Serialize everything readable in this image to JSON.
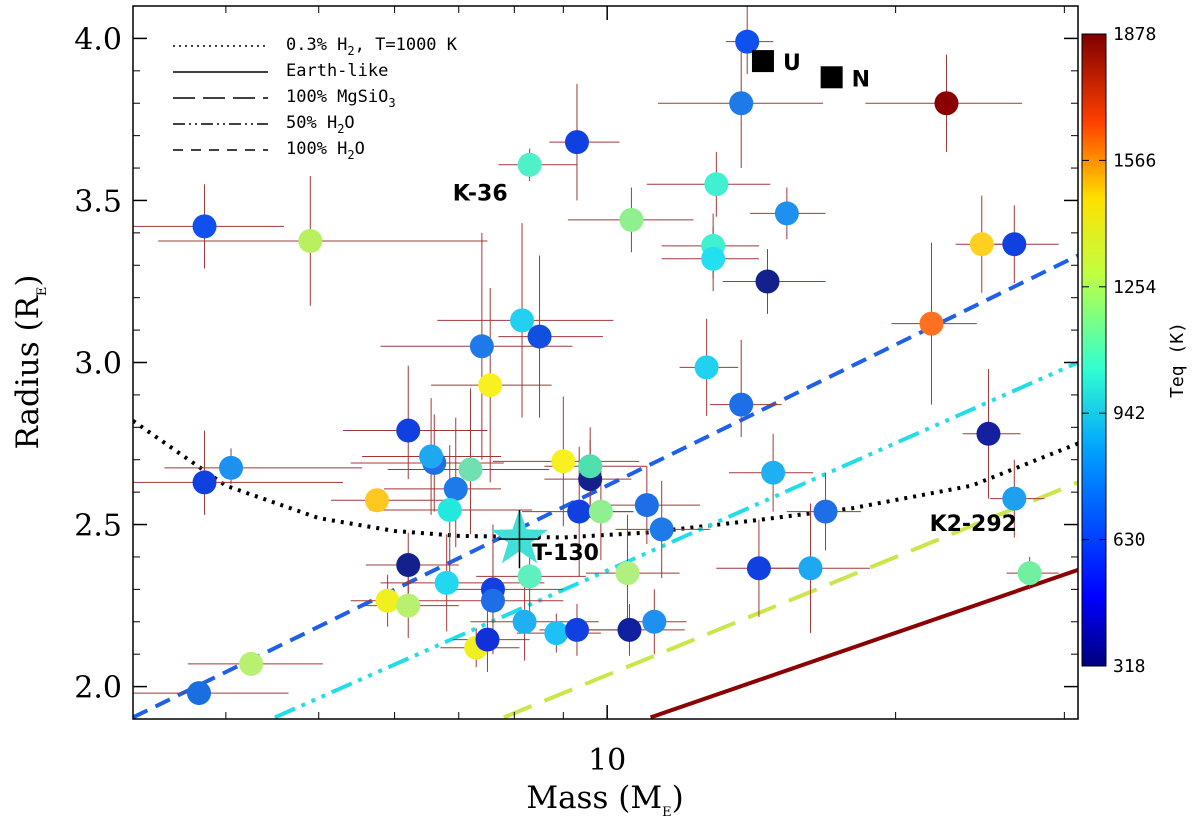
{
  "chart_data": {
    "type": "scatter",
    "xlabel": "Mass (M",
    "xlabel_sub": "E",
    "ylabel": "Radius (R",
    "ylabel_sub": "E",
    "x_scale": "log",
    "xlim": [
      3.2,
      31
    ],
    "ylim": [
      1.9,
      4.1
    ],
    "x_ticks": [
      {
        "value": 10,
        "label": "10"
      }
    ],
    "y_ticks": [
      {
        "value": 2.0,
        "label": "2.0"
      },
      {
        "value": 2.5,
        "label": "2.5"
      },
      {
        "value": 3.0,
        "label": "3.0"
      },
      {
        "value": 3.5,
        "label": "3.5"
      },
      {
        "value": 4.0,
        "label": "4.0"
      }
    ],
    "colorbar": {
      "label": "Teq (K)",
      "min": 318,
      "max": 1878,
      "ticks": [
        318,
        630,
        942,
        1254,
        1566,
        1878
      ]
    },
    "legend": [
      {
        "label": "0.3% H",
        "sub": "2",
        "rest": ", T=1000 K",
        "style": "dotted"
      },
      {
        "label": "Earth-like",
        "sub": "",
        "rest": "",
        "style": "solid"
      },
      {
        "label": "100% MgSiO",
        "sub": "3",
        "rest": "",
        "style": "longdash"
      },
      {
        "label": "50% H",
        "sub": "2",
        "rest": "O",
        "style": "dashdotdot"
      },
      {
        "label": "100% H",
        "sub": "2",
        "rest": "O",
        "style": "dash"
      }
    ],
    "models": [
      {
        "name": "0.3% H2, T=1000 K",
        "color": "#000000",
        "dash": "3,6",
        "width": 4,
        "points": [
          [
            3.2,
            2.82
          ],
          [
            4.0,
            2.62
          ],
          [
            5.0,
            2.52
          ],
          [
            6.0,
            2.48
          ],
          [
            7.0,
            2.465
          ],
          [
            9.0,
            2.46
          ],
          [
            11.0,
            2.475
          ],
          [
            14.0,
            2.51
          ],
          [
            18.0,
            2.55
          ],
          [
            24.0,
            2.62
          ],
          [
            31.0,
            2.75
          ]
        ]
      },
      {
        "name": "Earth-like",
        "color": "#8b0000",
        "dash": "",
        "width": 4,
        "points": [
          [
            11.1,
            1.905
          ],
          [
            31.0,
            2.36
          ]
        ]
      },
      {
        "name": "100% MgSiO3",
        "color": "#c8e84a",
        "dash": "30,14",
        "width": 4,
        "points": [
          [
            7.8,
            1.905
          ],
          [
            31.0,
            2.63
          ]
        ]
      },
      {
        "name": "50% H2O",
        "color": "#22dde6",
        "dash": "22,7,4,7,4,7,4,7",
        "width": 4,
        "points": [
          [
            4.5,
            1.905
          ],
          [
            31.0,
            3.0
          ]
        ]
      },
      {
        "name": "100% H2O",
        "color": "#1e60e8",
        "dash": "16,9",
        "width": 4,
        "points": [
          [
            3.2,
            1.905
          ],
          [
            31.0,
            3.33
          ]
        ]
      }
    ],
    "points": [
      {
        "m": 3.75,
        "r": 1.98,
        "c": "#1a6fe0",
        "xe": [
          0.9,
          0.9
        ],
        "ye": [
          0.0,
          0.0
        ]
      },
      {
        "m": 4.25,
        "r": 2.07,
        "c": "#b8f070",
        "xe": [
          0.6,
          0.8
        ],
        "ye": [
          0.0,
          0.0
        ]
      },
      {
        "m": 3.8,
        "r": 2.63,
        "c": "#1040e0",
        "xe": [
          0.7,
          1.5
        ],
        "ye": [
          0.1,
          0.16
        ]
      },
      {
        "m": 4.05,
        "r": 2.675,
        "c": "#1e90f0",
        "xe": [
          0.6,
          1.5
        ],
        "ye": [
          0.05,
          0.06
        ]
      },
      {
        "m": 3.8,
        "r": 3.42,
        "c": "#1050ee",
        "xe": [
          1.6,
          0.8
        ],
        "ye": [
          0.13,
          0.13
        ]
      },
      {
        "m": 4.9,
        "r": 3.375,
        "c": "#b8f060",
        "xe": [
          1.5,
          2.6
        ],
        "ye": [
          0.2,
          0.2
        ]
      },
      {
        "m": 5.75,
        "r": 2.575,
        "c": "#ffc820",
        "xe": [
          0.6,
          1.1
        ],
        "ye": [
          0.0,
          0.0
        ]
      },
      {
        "m": 6.2,
        "r": 2.79,
        "c": "#1040e0",
        "xe": [
          0.9,
          1.3
        ],
        "ye": [
          0.15,
          0.2
        ]
      },
      {
        "m": 6.2,
        "r": 2.375,
        "c": "#14208c",
        "xe": [
          0.6,
          0.8
        ],
        "ye": [
          0.1,
          0.1
        ]
      },
      {
        "m": 6.6,
        "r": 2.69,
        "c": "#1e6ee8",
        "xe": [
          1.2,
          1.2
        ],
        "ye": [
          0.15,
          0.15
        ]
      },
      {
        "m": 6.55,
        "r": 2.71,
        "c": "#1ea8f0",
        "xe": [
          1.0,
          1.2
        ],
        "ye": [
          0.18,
          0.18
        ]
      },
      {
        "m": 6.95,
        "r": 2.61,
        "c": "#1e7ae8",
        "xe": [
          1.1,
          0.8
        ],
        "ye": [
          0.18,
          0.22
        ]
      },
      {
        "m": 7.2,
        "r": 2.67,
        "c": "#70e0b0",
        "xe": [
          1.3,
          1.5
        ],
        "ye": [
          0.2,
          0.25
        ]
      },
      {
        "m": 6.85,
        "r": 2.545,
        "c": "#22e8e0",
        "xe": [
          1.2,
          1.5
        ],
        "ye": [
          0.2,
          0.2
        ]
      },
      {
        "m": 6.8,
        "r": 2.32,
        "c": "#22d8f0",
        "xe": [
          1.0,
          1.8
        ],
        "ye": [
          0.15,
          0.15
        ]
      },
      {
        "m": 5.9,
        "r": 2.265,
        "c": "#f0f020",
        "xe": [
          0.5,
          0.7
        ],
        "ye": [
          0.08,
          0.08
        ]
      },
      {
        "m": 6.2,
        "r": 2.25,
        "c": "#b8f070",
        "xe": [
          0.7,
          0.8
        ],
        "ye": [
          0.1,
          0.1
        ]
      },
      {
        "m": 7.6,
        "r": 2.3,
        "c": "#1040e0",
        "xe": [
          0.8,
          1.4
        ],
        "ye": [
          0.2,
          0.2
        ]
      },
      {
        "m": 7.6,
        "r": 2.265,
        "c": "#1e6ee8",
        "xe": [
          1.0,
          1.4
        ],
        "ye": [
          0.15,
          0.15
        ]
      },
      {
        "m": 7.3,
        "r": 2.12,
        "c": "#f0f020",
        "xe": [
          0.6,
          0.8
        ],
        "ye": [
          0.06,
          0.06
        ]
      },
      {
        "m": 7.5,
        "r": 2.145,
        "c": "#1030d8",
        "xe": [
          0.6,
          0.8
        ],
        "ye": [
          0.1,
          0.1
        ]
      },
      {
        "m": 8.2,
        "r": 2.2,
        "c": "#1eb0f0",
        "xe": [
          1.0,
          1.6
        ],
        "ye": [
          0.12,
          0.12
        ]
      },
      {
        "m": 8.3,
        "r": 2.34,
        "c": "#60f0c0",
        "xe": [
          1.0,
          1.2
        ],
        "ye": [
          0.12,
          0.12
        ]
      },
      {
        "m": 8.85,
        "r": 2.165,
        "c": "#1ec0f8",
        "xe": [
          0.8,
          1.0
        ],
        "ye": [
          0.06,
          0.06
        ]
      },
      {
        "m": 9.3,
        "r": 2.175,
        "c": "#1040e0",
        "xe": [
          0.8,
          1.1
        ],
        "ye": [
          0.08,
          0.08
        ]
      },
      {
        "m": 7.4,
        "r": 3.05,
        "c": "#1e7ae8",
        "xe": [
          1.6,
          1.8
        ],
        "ye": [
          0.35,
          0.35
        ]
      },
      {
        "m": 7.55,
        "r": 2.93,
        "c": "#f8f020",
        "xe": [
          1.0,
          1.2
        ],
        "ye": [
          0.3,
          0.3
        ]
      },
      {
        "m": 8.15,
        "r": 3.13,
        "c": "#22d0f0",
        "xe": [
          1.5,
          2.0
        ],
        "ye": [
          0.3,
          0.3
        ]
      },
      {
        "m": 8.5,
        "r": 3.08,
        "c": "#1050e0",
        "xe": [
          0.8,
          1.4
        ],
        "ye": [
          0.25,
          0.25
        ]
      },
      {
        "m": 8.3,
        "r": 3.61,
        "c": "#50f0c8",
        "xe": [
          0.6,
          1.0
        ],
        "ye": [
          0.05,
          0.05
        ]
      },
      {
        "m": 9.3,
        "r": 3.68,
        "c": "#1040e0",
        "xe": [
          0.6,
          1.0
        ],
        "ye": [
          0.18,
          0.18
        ]
      },
      {
        "m": 9.0,
        "r": 2.695,
        "c": "#f8f020",
        "xe": [
          1.4,
          1.8
        ],
        "ye": [
          0.2,
          0.2
        ]
      },
      {
        "m": 9.6,
        "r": 2.64,
        "c": "#14208c",
        "xe": [
          1.0,
          1.0
        ],
        "ye": [
          0.12,
          0.12
        ]
      },
      {
        "m": 9.6,
        "r": 2.68,
        "c": "#50e0b0",
        "xe": [
          1.0,
          1.4
        ],
        "ye": [
          0.12,
          0.12
        ]
      },
      {
        "m": 9.35,
        "r": 2.54,
        "c": "#1040e0",
        "xe": [
          1.2,
          1.3
        ],
        "ye": [
          0.2,
          0.2
        ]
      },
      {
        "m": 9.85,
        "r": 2.54,
        "c": "#90f090",
        "xe": [
          0.6,
          0.8
        ],
        "ye": [
          0.15,
          0.15
        ]
      },
      {
        "m": 10.5,
        "r": 2.35,
        "c": "#b0f080",
        "xe": [
          1.0,
          1.4
        ],
        "ye": [
          0.18,
          0.18
        ]
      },
      {
        "m": 10.55,
        "r": 2.175,
        "c": "#10209e",
        "xe": [
          1.5,
          1.5
        ],
        "ye": [
          0.08,
          0.08
        ]
      },
      {
        "m": 11.0,
        "r": 2.56,
        "c": "#1e6ee8",
        "xe": [
          1.2,
          1.5
        ],
        "ye": [
          0.12,
          0.12
        ]
      },
      {
        "m": 11.4,
        "r": 2.485,
        "c": "#1e7ae8",
        "xe": [
          1.2,
          1.4
        ],
        "ye": [
          0.15,
          0.15
        ]
      },
      {
        "m": 11.2,
        "r": 2.2,
        "c": "#1e90f0",
        "xe": [
          0.7,
          0.9
        ],
        "ye": [
          0.1,
          0.1
        ]
      },
      {
        "m": 10.6,
        "r": 3.44,
        "c": "#90f090",
        "xe": [
          1.5,
          1.7
        ],
        "ye": [
          0.1,
          0.1
        ]
      },
      {
        "m": 13.0,
        "r": 3.55,
        "c": "#40f0d0",
        "xe": [
          2.0,
          1.8
        ],
        "ye": [
          0.1,
          0.1
        ]
      },
      {
        "m": 12.9,
        "r": 3.36,
        "c": "#40f0d0",
        "xe": [
          1.5,
          1.5
        ],
        "ye": [
          0.1,
          0.1
        ]
      },
      {
        "m": 12.9,
        "r": 3.32,
        "c": "#22e0f0",
        "xe": [
          1.5,
          1.5
        ],
        "ye": [
          0.1,
          0.1
        ]
      },
      {
        "m": 12.7,
        "r": 2.985,
        "c": "#22d0f0",
        "xe": [
          0.8,
          1.0
        ],
        "ye": [
          0.15,
          0.15
        ]
      },
      {
        "m": 13.8,
        "r": 3.8,
        "c": "#1e7ae8",
        "xe": [
          2.5,
          3.0
        ],
        "ye": [
          0.2,
          0.2
        ]
      },
      {
        "m": 14.0,
        "r": 3.99,
        "c": "#1050ee",
        "xe": [
          0.7,
          0.9
        ],
        "ye": [
          0.1,
          0.15
        ]
      },
      {
        "m": 13.8,
        "r": 2.87,
        "c": "#1e6ee8",
        "xe": [
          1.0,
          1.4
        ],
        "ye": [
          0.1,
          0.2
        ]
      },
      {
        "m": 14.7,
        "r": 3.25,
        "c": "#14208c",
        "xe": [
          1.5,
          2.2
        ],
        "ye": [
          0.1,
          0.1
        ]
      },
      {
        "m": 15.4,
        "r": 3.46,
        "c": "#1e90f0",
        "xe": [
          1.3,
          1.5
        ],
        "ye": [
          0.08,
          0.08
        ]
      },
      {
        "m": 14.9,
        "r": 2.66,
        "c": "#1eb0f0",
        "xe": [
          1.5,
          1.5
        ],
        "ye": [
          0.12,
          0.12
        ]
      },
      {
        "m": 14.4,
        "r": 2.365,
        "c": "#1040e0",
        "xe": [
          1.4,
          1.6
        ],
        "ye": [
          0.15,
          0.15
        ]
      },
      {
        "m": 16.3,
        "r": 2.365,
        "c": "#1ea8f0",
        "xe": [
          1.5,
          2.5
        ],
        "ye": [
          0.2,
          0.2
        ]
      },
      {
        "m": 16.9,
        "r": 2.54,
        "c": "#1e6ee8",
        "xe": [
          1.5,
          1.5
        ],
        "ye": [
          0.12,
          0.12
        ]
      },
      {
        "m": 21.8,
        "r": 3.12,
        "c": "#ff7020",
        "xe": [
          2.0,
          2.5
        ],
        "ye": [
          0.25,
          0.25
        ]
      },
      {
        "m": 22.6,
        "r": 3.8,
        "c": "#8b0000",
        "xe": [
          4.0,
          4.5
        ],
        "ye": [
          0.15,
          0.15
        ]
      },
      {
        "m": 24.6,
        "r": 3.365,
        "c": "#ffd020",
        "xe": [
          1.5,
          2.0
        ],
        "ye": [
          0.15,
          0.15
        ]
      },
      {
        "m": 25.0,
        "r": 2.78,
        "c": "#14209e",
        "xe": [
          1.5,
          2.0
        ],
        "ye": [
          0.2,
          0.2
        ]
      },
      {
        "m": 26.6,
        "r": 3.365,
        "c": "#1040e0",
        "xe": [
          1.2,
          3.0
        ],
        "ye": [
          0.12,
          0.12
        ]
      },
      {
        "m": 26.6,
        "r": 2.58,
        "c": "#1ea0f0",
        "xe": [
          1.5,
          2.0
        ],
        "ye": [
          0.12,
          0.12
        ]
      },
      {
        "m": 27.6,
        "r": 2.35,
        "c": "#70f0a0",
        "xe": [
          1.5,
          2.0
        ],
        "ye": [
          0.05,
          0.05
        ]
      }
    ],
    "star": {
      "name": "T-130",
      "m": 8.1,
      "r": 2.455,
      "c": "#40e0d8",
      "xe": [
        0.4,
        0.4
      ],
      "ye": [
        0.09,
        0.09
      ]
    },
    "planets": [
      {
        "label": "U",
        "m": 14.54,
        "r": 3.93
      },
      {
        "label": "N",
        "m": 17.15,
        "r": 3.88
      }
    ],
    "annotations": [
      {
        "text": "K-36",
        "m": 6.9,
        "r": 3.5
      },
      {
        "text": "T-130",
        "m": 8.35,
        "r": 2.39
      },
      {
        "text": "K2-292",
        "m": 21.7,
        "r": 2.48
      }
    ]
  }
}
